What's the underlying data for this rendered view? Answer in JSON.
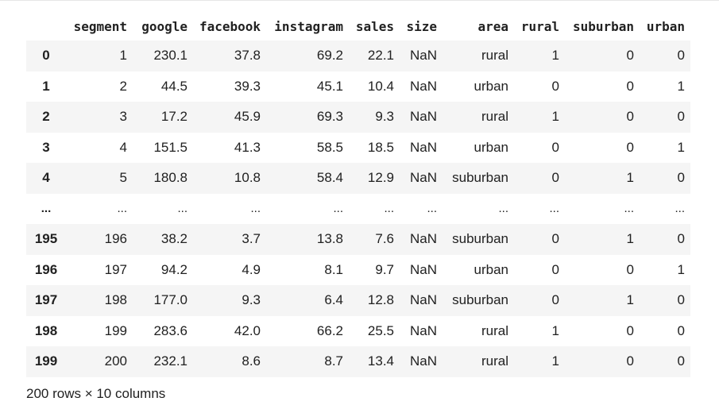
{
  "dataframe": {
    "columns": [
      "segment",
      "google",
      "facebook",
      "instagram",
      "sales",
      "size",
      "area",
      "rural",
      "suburban",
      "urban"
    ],
    "rows": [
      {
        "index": "0",
        "cells": [
          "1",
          "230.1",
          "37.8",
          "69.2",
          "22.1",
          "NaN",
          "rural",
          "1",
          "0",
          "0"
        ]
      },
      {
        "index": "1",
        "cells": [
          "2",
          "44.5",
          "39.3",
          "45.1",
          "10.4",
          "NaN",
          "urban",
          "0",
          "0",
          "1"
        ]
      },
      {
        "index": "2",
        "cells": [
          "3",
          "17.2",
          "45.9",
          "69.3",
          "9.3",
          "NaN",
          "rural",
          "1",
          "0",
          "0"
        ]
      },
      {
        "index": "3",
        "cells": [
          "4",
          "151.5",
          "41.3",
          "58.5",
          "18.5",
          "NaN",
          "urban",
          "0",
          "0",
          "1"
        ]
      },
      {
        "index": "4",
        "cells": [
          "5",
          "180.8",
          "10.8",
          "58.4",
          "12.9",
          "NaN",
          "suburban",
          "0",
          "1",
          "0"
        ]
      },
      {
        "index": "...",
        "cells": [
          "...",
          "...",
          "...",
          "...",
          "...",
          "...",
          "...",
          "...",
          "...",
          "..."
        ],
        "ellipsis": true
      },
      {
        "index": "195",
        "cells": [
          "196",
          "38.2",
          "3.7",
          "13.8",
          "7.6",
          "NaN",
          "suburban",
          "0",
          "1",
          "0"
        ]
      },
      {
        "index": "196",
        "cells": [
          "197",
          "94.2",
          "4.9",
          "8.1",
          "9.7",
          "NaN",
          "urban",
          "0",
          "0",
          "1"
        ]
      },
      {
        "index": "197",
        "cells": [
          "198",
          "177.0",
          "9.3",
          "6.4",
          "12.8",
          "NaN",
          "suburban",
          "0",
          "1",
          "0"
        ]
      },
      {
        "index": "198",
        "cells": [
          "199",
          "283.6",
          "42.0",
          "66.2",
          "25.5",
          "NaN",
          "rural",
          "1",
          "0",
          "0"
        ]
      },
      {
        "index": "199",
        "cells": [
          "200",
          "232.1",
          "8.6",
          "8.7",
          "13.4",
          "NaN",
          "rural",
          "1",
          "0",
          "0"
        ]
      }
    ],
    "shape_text": "200 rows × 10 columns"
  },
  "colors": {
    "striped_row": "#f5f5f5",
    "text": "#212121"
  }
}
